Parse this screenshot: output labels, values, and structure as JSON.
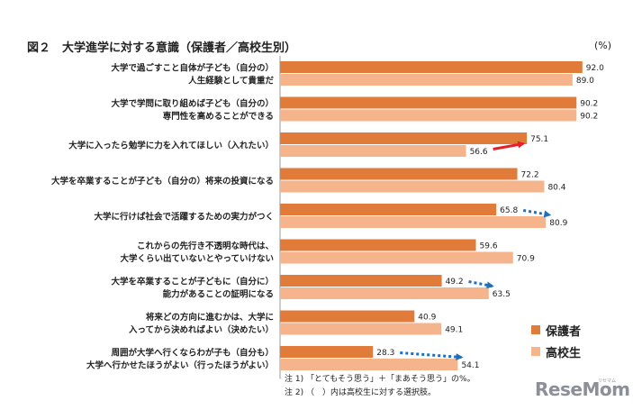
{
  "title": "図２　大学進学に対する意識（保護者／高校生別）",
  "unit": "(%)",
  "colors": {
    "parent": "#e07b39",
    "student": "#f6b48c",
    "arrow_red": "#e3202a",
    "arrow_blue": "#1f6fc0"
  },
  "chart_data": {
    "type": "bar",
    "orientation": "horizontal",
    "categories": [
      [
        "大学で過ごすこと自体が子ども（自分の）",
        "人生経験として貴重だ"
      ],
      [
        "大学で学問に取り組めば子ども（自分の）",
        "専門性を高めることができる"
      ],
      [
        "大学に入ったら勉学に力を入れてほしい（入れたい）"
      ],
      [
        "大学を卒業することが子ども（自分の）将来の投資になる"
      ],
      [
        "大学に行けば社会で活躍するための実力がつく"
      ],
      [
        "これからの先行き不透明な時代は、",
        "大学くらい出ていないとやっていけない"
      ],
      [
        "大学を卒業することが子どもに（自分に）",
        "能力があることの証明になる"
      ],
      [
        "将来どの方向に進むかは、大学に",
        "入ってから決めればよい（決めたい）"
      ],
      [
        "周囲が大学へ行くならわが子も（自分も）",
        "大学へ行かせたほうがよい（行ったほうがよい）"
      ]
    ],
    "series": [
      {
        "name": "保護者",
        "values": [
          92.0,
          90.2,
          75.1,
          72.2,
          65.8,
          59.6,
          49.2,
          40.9,
          28.3
        ]
      },
      {
        "name": "高校生",
        "values": [
          89.0,
          90.2,
          56.6,
          80.4,
          80.9,
          70.9,
          63.5,
          49.1,
          54.1
        ]
      }
    ],
    "value_labels": [
      [
        "92.0",
        "90.2",
        "75.1",
        "72.2",
        "65.8",
        "59.6",
        "49.2",
        "40.9",
        "28.3"
      ],
      [
        "89.0",
        "90.2",
        "56.6",
        "80.4",
        "80.9",
        "70.9",
        "63.5",
        "49.1",
        "54.1"
      ]
    ],
    "xlim": [
      0,
      100
    ],
    "arrows": [
      {
        "category_index": 2,
        "style": "solid",
        "color": "red",
        "from": 56.6,
        "to": 75.1
      },
      {
        "category_index": 4,
        "style": "dotted",
        "color": "blue",
        "from": 65.8,
        "to": 80.9
      },
      {
        "category_index": 6,
        "style": "dotted",
        "color": "blue",
        "from": 49.2,
        "to": 63.5
      },
      {
        "category_index": 8,
        "style": "dotted",
        "color": "blue",
        "from": 28.3,
        "to": 54.1
      }
    ],
    "legend_position": "bottom-right"
  },
  "notes": [
    "注 1) 「とてもそう思う」＋「まあそう思う」の%。",
    "注 2) （　）内は高校生に対する選択肢。"
  ],
  "brand": {
    "name_a": "Rese",
    "name_b": "Mom",
    "sub": "リセマム"
  }
}
